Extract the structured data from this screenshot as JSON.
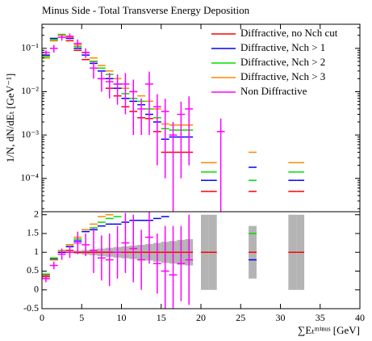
{
  "chart_data": [
    {
      "type": "errorbar",
      "title": "Minus Side - Total Transverse Energy Deposition",
      "ylabel": "1/N, dN/dEₜ [GeV⁻¹]",
      "x": [
        0.5,
        1.5,
        2.5,
        3.5,
        4.5,
        5.5,
        6.5,
        7.5,
        8.5,
        9.5,
        10.5,
        11.5,
        12.5,
        13.5,
        14.5,
        15.5,
        16.5,
        17.5,
        18.5,
        20.5,
        21.5,
        22.5,
        26.5,
        31.5,
        32.5
      ],
      "xlim": [
        0,
        40
      ],
      "ylim": [
        1.7e-05,
        0.36
      ],
      "yscale": "log",
      "yticks": [
        {
          "value": 0.0001,
          "label": "10⁻⁴"
        },
        {
          "value": 0.001,
          "label": "10⁻³"
        },
        {
          "value": 0.01,
          "label": "10⁻²"
        },
        {
          "value": 0.1,
          "label": "10⁻¹"
        }
      ],
      "legend": "upper right",
      "series": [
        {
          "name": "Diffractive, no Nch cut",
          "color": "#ff0000",
          "values": [
            0.06,
            0.15,
            0.2,
            0.15,
            0.09,
            0.055,
            0.05,
            0.02,
            0.012,
            0.008,
            0.0045,
            0.0035,
            0.0025,
            0.0024,
            0.0012,
            0.0004,
            0.0004,
            0.0004,
            0.0004,
            5e-05,
            5e-05,
            null,
            5e-05,
            5e-05,
            5e-05
          ]
        },
        {
          "name": "Diffractive, Nch > 1",
          "color": "#0000ff",
          "values": [
            0.07,
            0.17,
            0.2,
            0.17,
            0.1,
            0.07,
            0.045,
            0.03,
            0.02,
            0.012,
            0.007,
            0.006,
            0.005,
            0.003,
            0.002,
            0.0008,
            0.0009,
            0.0009,
            0.0009,
            9e-05,
            9e-05,
            null,
            0.00018,
            9e-05,
            9e-05
          ]
        },
        {
          "name": "Diffractive, Nch > 2",
          "color": "#00dd00",
          "values": [
            0.065,
            0.16,
            0.21,
            0.18,
            0.11,
            0.08,
            0.05,
            0.035,
            0.025,
            0.015,
            0.009,
            0.007,
            0.006,
            0.004,
            0.0025,
            0.0014,
            0.0013,
            0.0013,
            0.0013,
            0.00014,
            0.00014,
            null,
            9e-05,
            0.00014,
            0.00014
          ]
        },
        {
          "name": "Diffractive, Nch > 3",
          "color": "#ff8800",
          "values": [
            0.06,
            0.15,
            0.2,
            0.18,
            0.12,
            0.08,
            0.06,
            0.04,
            0.03,
            0.02,
            0.012,
            0.01,
            0.008,
            0.006,
            0.004,
            0.0018,
            0.0017,
            0.0017,
            0.0017,
            0.00023,
            0.00023,
            null,
            0.0004,
            0.00023,
            0.00023
          ]
        },
        {
          "name": "Non Diffractive",
          "color": "#ff00ff",
          "values": [
            0.08,
            0.1,
            0.18,
            0.19,
            0.13,
            0.08,
            0.035,
            0.02,
            0.017,
            0.015,
            0.015,
            0.01,
            0.004,
            0.015,
            0.0045,
            0.0035,
            0.001,
            0.003,
            0.004,
            null,
            null,
            0.0012,
            null,
            null,
            null
          ],
          "errors": [
            0.01,
            0.02,
            0.03,
            0.03,
            0.03,
            0.02,
            0.015,
            0.01,
            0.01,
            0.01,
            0.012,
            0.009,
            0.003,
            0.014,
            0.0043,
            0.0034,
            0.001,
            0.0029,
            0.0038,
            null,
            null,
            0.0012,
            null,
            null,
            null
          ]
        }
      ]
    },
    {
      "type": "errorbar",
      "xlabel": "∑Eₜᵐⁱⁿᵘˢ [GeV]",
      "x": [
        0.5,
        1.5,
        2.5,
        3.5,
        4.5,
        5.5,
        6.5,
        7.5,
        8.5,
        9.5,
        10.5,
        11.5,
        12.5,
        13.5,
        14.5,
        15.5,
        16.5,
        17.5,
        18.5,
        20.5,
        21.5,
        22.5,
        26.5,
        31.5,
        32.5
      ],
      "xlim": [
        0,
        40
      ],
      "xticks": [
        0,
        5,
        10,
        15,
        20,
        25,
        30,
        35,
        40
      ],
      "ylim": [
        -0.5,
        2.08
      ],
      "yticks": [
        -0.5,
        0,
        0.5,
        1,
        1.5,
        2
      ],
      "band": {
        "color": "#b4b4b4",
        "values": [
          0,
          0,
          0,
          0.02,
          0.04,
          0.06,
          0.08,
          0.1,
          0.12,
          0.14,
          0.16,
          0.18,
          0.2,
          0.22,
          0.25,
          0.28,
          0.3,
          0.33,
          0.35,
          1,
          1,
          null,
          0.7,
          1,
          1
        ]
      },
      "series": [
        {
          "color": "#ff0000",
          "values": [
            0.35,
            0.8,
            1.0,
            1.05,
            1,
            1,
            1,
            1,
            1,
            1,
            1,
            1,
            1,
            1,
            1,
            1,
            1,
            1,
            1,
            1,
            1,
            null,
            1,
            1,
            1
          ]
        },
        {
          "color": "#0000ff",
          "values": [
            0.4,
            0.82,
            1.0,
            1.15,
            1.3,
            1.55,
            1.6,
            1.7,
            1.75,
            1.75,
            1.8,
            1.85,
            1.85,
            1.85,
            1.9,
            1.95,
            null,
            null,
            null,
            null,
            null,
            null,
            0.8,
            null,
            null
          ]
        },
        {
          "color": "#00dd00",
          "values": [
            0.42,
            0.85,
            1.05,
            1.2,
            1.35,
            1.6,
            1.65,
            1.8,
            1.9,
            1.95,
            null,
            null,
            null,
            null,
            null,
            null,
            null,
            null,
            null,
            null,
            null,
            null,
            1.5,
            null,
            null
          ]
        },
        {
          "color": "#ff8800",
          "values": [
            0.38,
            0.8,
            1.05,
            1.2,
            1.4,
            1.6,
            1.75,
            1.95,
            2.0,
            null,
            null,
            null,
            null,
            null,
            null,
            null,
            null,
            null,
            null,
            null,
            null,
            null,
            null,
            null,
            null
          ]
        },
        {
          "color": "#ff00ff",
          "values": [
            0.3,
            0.65,
            0.95,
            1.0,
            1.25,
            1.2,
            1.05,
            0.85,
            0.8,
            1.0,
            1.25,
            1.1,
            0.8,
            1.4,
            0.7,
            0.5,
            0.4,
            0.7,
            0.8,
            null,
            null,
            null,
            null,
            null,
            null
          ],
          "errors": [
            0.1,
            0.1,
            0.15,
            0.15,
            0.3,
            0.3,
            0.6,
            0.6,
            0.7,
            0.7,
            0.8,
            0.9,
            0.8,
            0.7,
            0.8,
            1.2,
            1.3,
            1.0,
            1.2,
            null,
            null,
            null,
            null,
            null,
            null
          ]
        }
      ]
    }
  ]
}
